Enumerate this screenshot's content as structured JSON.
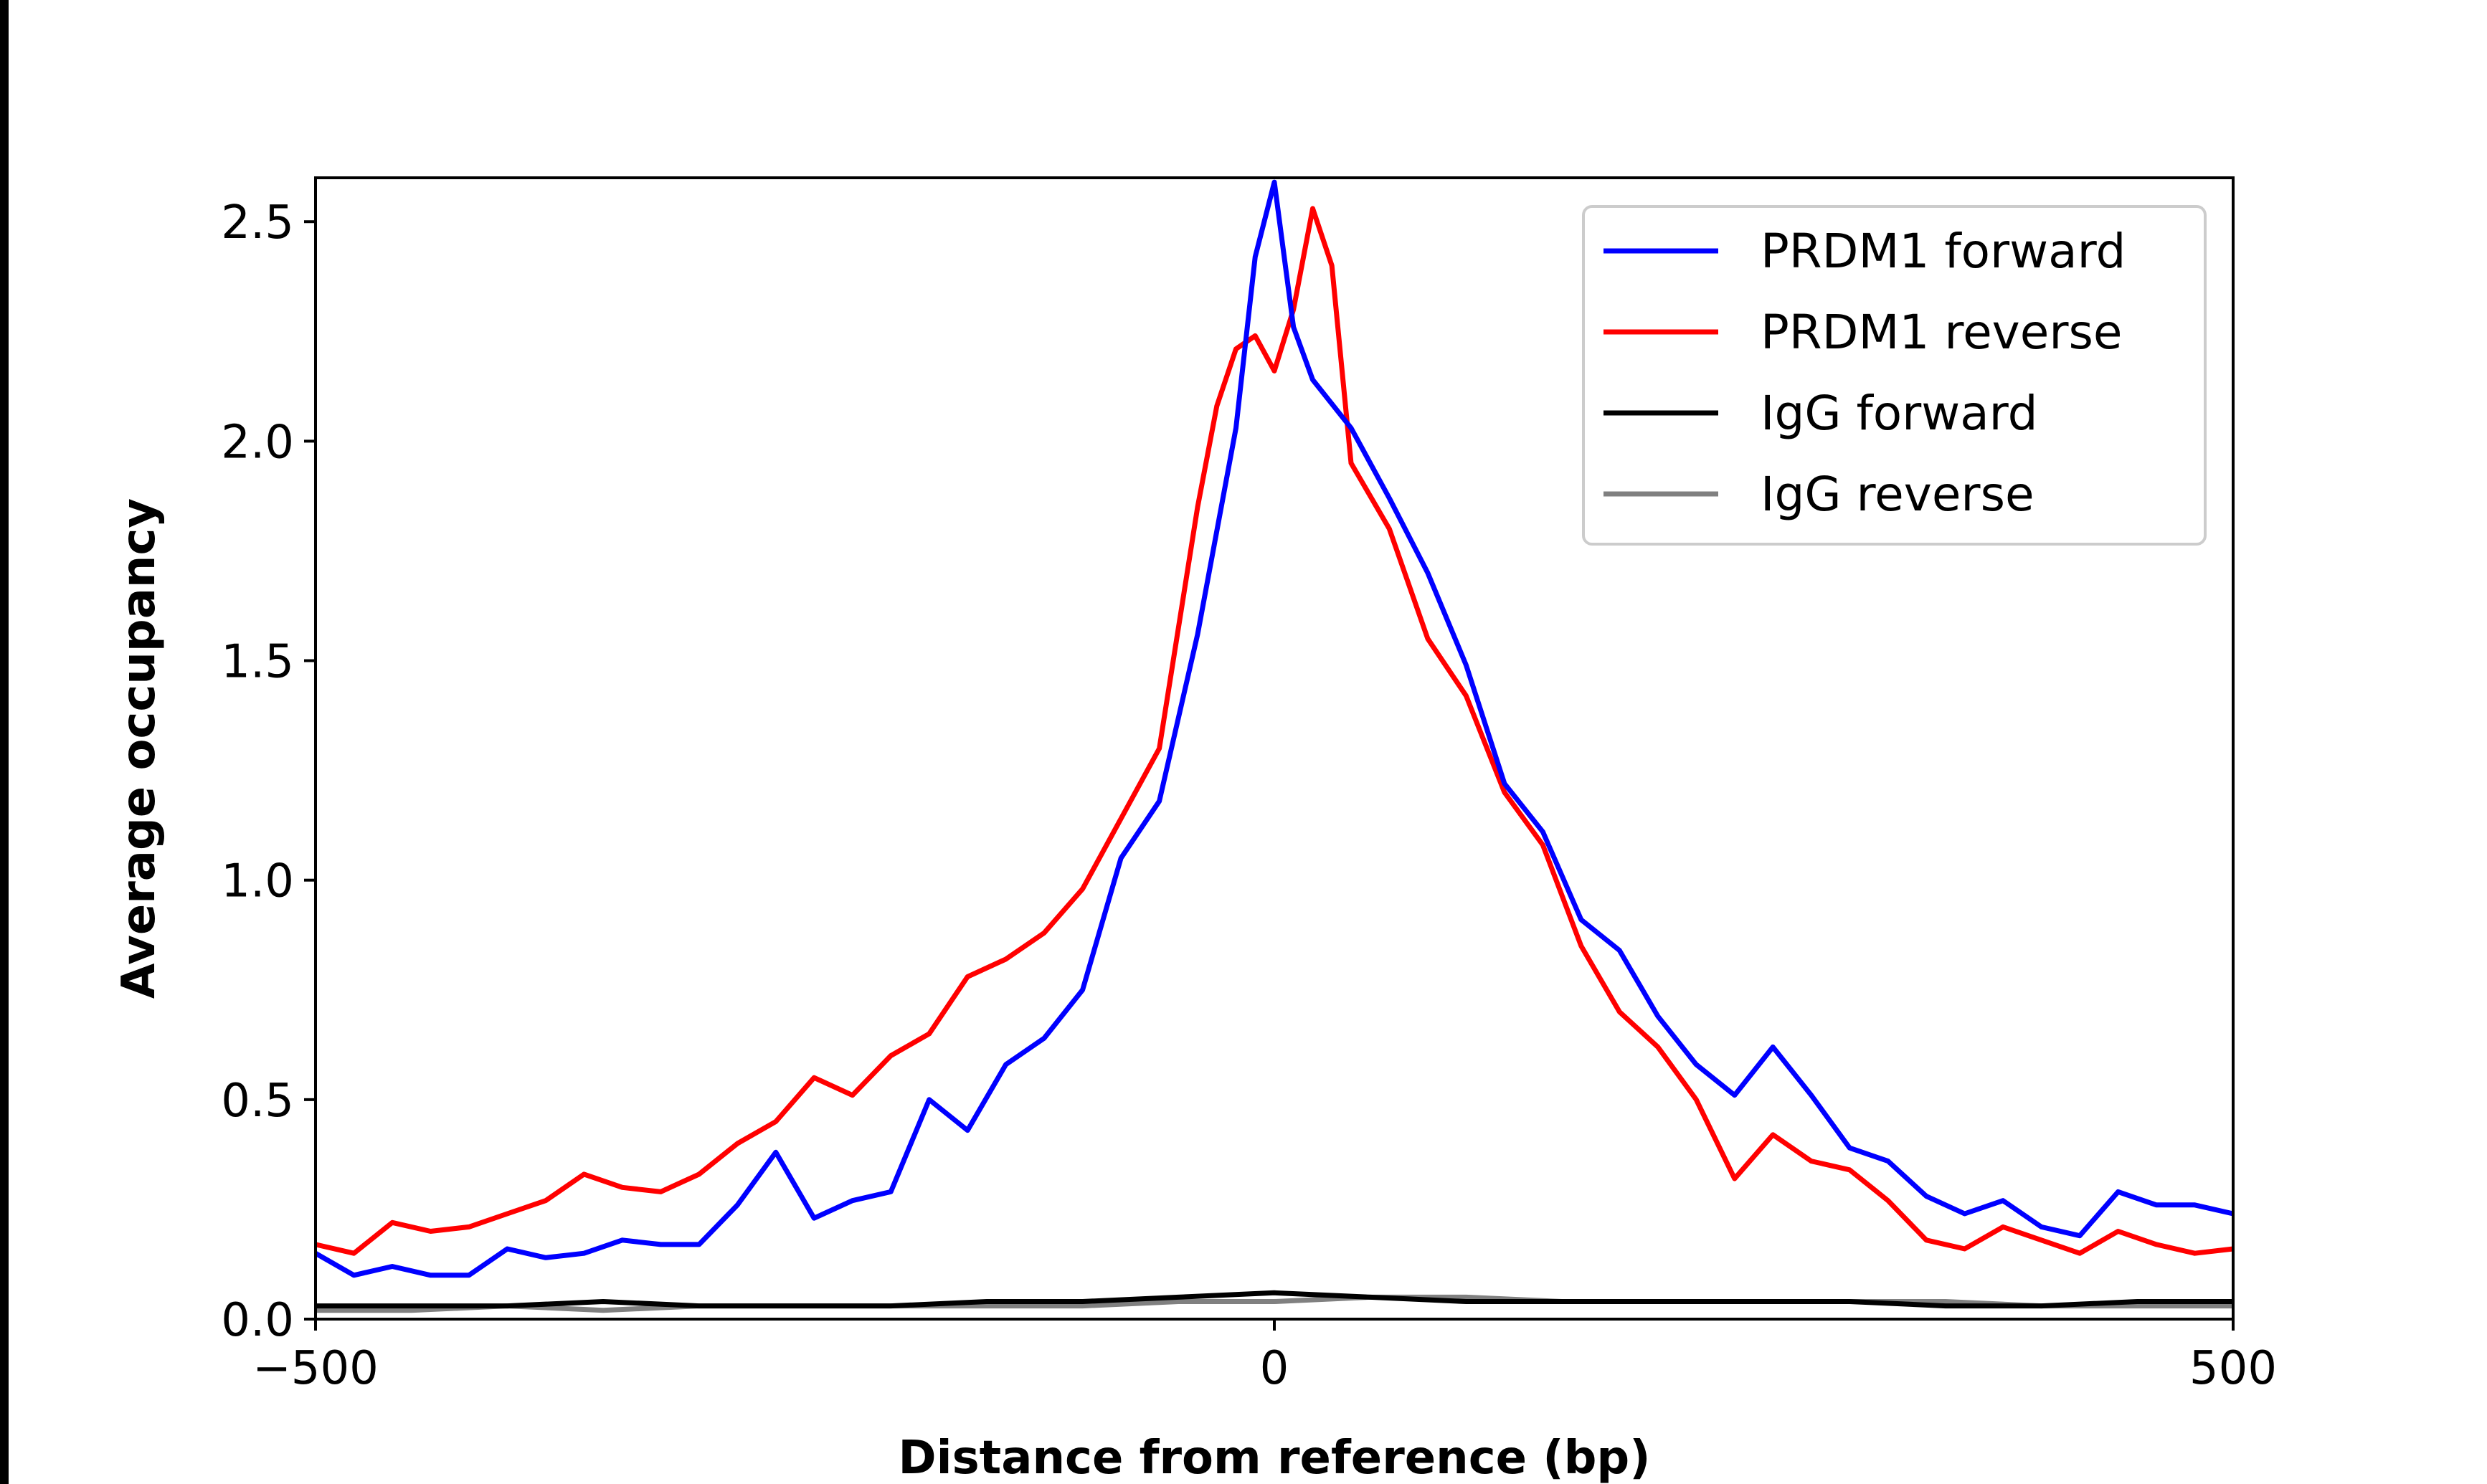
{
  "chart_data": {
    "type": "line",
    "title": "",
    "xlabel": "Distance from reference (bp)",
    "ylabel": "Average occupancy",
    "xlim": [
      -500,
      500
    ],
    "ylim": [
      0,
      2.6
    ],
    "xticks": [
      -500,
      0,
      500
    ],
    "xtick_labels": [
      "−500",
      "0",
      "500"
    ],
    "yticks": [
      0.0,
      0.5,
      1.0,
      1.5,
      2.0,
      2.5
    ],
    "ytick_labels": [
      "0.0",
      "0.5",
      "1.0",
      "1.5",
      "2.0",
      "2.5"
    ],
    "grid": false,
    "legend_position": "top-right",
    "series": [
      {
        "name": "PRDM1 forward",
        "color": "#0000ff",
        "x": [
          -500,
          -480,
          -460,
          -440,
          -420,
          -400,
          -380,
          -360,
          -340,
          -320,
          -300,
          -280,
          -260,
          -240,
          -220,
          -200,
          -180,
          -160,
          -140,
          -120,
          -100,
          -80,
          -60,
          -40,
          -20,
          -10,
          0,
          10,
          20,
          40,
          60,
          80,
          100,
          120,
          140,
          160,
          180,
          200,
          220,
          240,
          260,
          280,
          300,
          320,
          340,
          360,
          380,
          400,
          420,
          440,
          460,
          480,
          500
        ],
        "y": [
          0.15,
          0.1,
          0.12,
          0.1,
          0.1,
          0.16,
          0.14,
          0.15,
          0.18,
          0.17,
          0.17,
          0.26,
          0.38,
          0.23,
          0.27,
          0.29,
          0.5,
          0.43,
          0.58,
          0.64,
          0.75,
          1.05,
          1.18,
          1.56,
          2.03,
          2.42,
          2.59,
          2.26,
          2.14,
          2.03,
          1.87,
          1.7,
          1.49,
          1.22,
          1.11,
          0.91,
          0.84,
          0.69,
          0.58,
          0.51,
          0.62,
          0.51,
          0.39,
          0.36,
          0.28,
          0.24,
          0.27,
          0.21,
          0.19,
          0.29,
          0.26,
          0.26,
          0.24
        ]
      },
      {
        "name": "PRDM1 reverse",
        "color": "#ff0000",
        "x": [
          -500,
          -480,
          -460,
          -440,
          -420,
          -400,
          -380,
          -360,
          -340,
          -320,
          -300,
          -280,
          -260,
          -240,
          -220,
          -200,
          -180,
          -160,
          -140,
          -120,
          -100,
          -80,
          -60,
          -40,
          -30,
          -20,
          -10,
          0,
          10,
          20,
          30,
          40,
          60,
          80,
          100,
          120,
          140,
          160,
          180,
          200,
          220,
          240,
          260,
          280,
          300,
          320,
          340,
          360,
          380,
          400,
          420,
          440,
          460,
          480,
          500
        ],
        "y": [
          0.17,
          0.15,
          0.22,
          0.2,
          0.21,
          0.24,
          0.27,
          0.33,
          0.3,
          0.29,
          0.33,
          0.4,
          0.45,
          0.55,
          0.51,
          0.6,
          0.65,
          0.78,
          0.82,
          0.88,
          0.98,
          1.14,
          1.3,
          1.85,
          2.08,
          2.21,
          2.24,
          2.16,
          2.3,
          2.53,
          2.4,
          1.95,
          1.8,
          1.55,
          1.42,
          1.2,
          1.08,
          0.85,
          0.7,
          0.62,
          0.5,
          0.32,
          0.42,
          0.36,
          0.34,
          0.27,
          0.18,
          0.16,
          0.21,
          0.18,
          0.15,
          0.2,
          0.17,
          0.15,
          0.16
        ]
      },
      {
        "name": "IgG forward",
        "color": "#000000",
        "x": [
          -500,
          -450,
          -400,
          -350,
          -300,
          -250,
          -200,
          -150,
          -100,
          -50,
          0,
          50,
          100,
          150,
          200,
          250,
          300,
          350,
          400,
          450,
          500
        ],
        "y": [
          0.03,
          0.03,
          0.03,
          0.04,
          0.03,
          0.03,
          0.03,
          0.04,
          0.04,
          0.05,
          0.06,
          0.05,
          0.04,
          0.04,
          0.04,
          0.04,
          0.04,
          0.03,
          0.03,
          0.04,
          0.04
        ]
      },
      {
        "name": "IgG reverse",
        "color": "#808080",
        "x": [
          -500,
          -450,
          -400,
          -350,
          -300,
          -250,
          -200,
          -150,
          -100,
          -50,
          0,
          50,
          100,
          150,
          200,
          250,
          300,
          350,
          400,
          450,
          500
        ],
        "y": [
          0.02,
          0.02,
          0.03,
          0.02,
          0.03,
          0.03,
          0.03,
          0.03,
          0.03,
          0.04,
          0.04,
          0.05,
          0.05,
          0.04,
          0.04,
          0.04,
          0.04,
          0.04,
          0.03,
          0.03,
          0.03
        ]
      }
    ]
  }
}
